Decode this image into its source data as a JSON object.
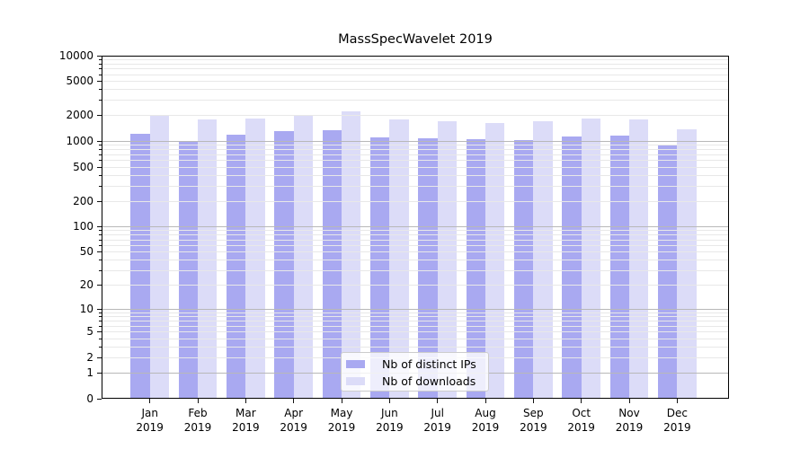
{
  "title": "MassSpecWavelet 2019",
  "legend": {
    "items": [
      {
        "label": "Nb of distinct IPs",
        "color": "#a9a9f1"
      },
      {
        "label": "Nb of downloads",
        "color": "#dcdcf8"
      }
    ]
  },
  "chart_data": {
    "type": "bar",
    "title": "MassSpecWavelet 2019",
    "categories": [
      "Jan 2019",
      "Feb 2019",
      "Mar 2019",
      "Apr 2019",
      "May 2019",
      "Jun 2019",
      "Jul 2019",
      "Aug 2019",
      "Sep 2019",
      "Oct 2019",
      "Nov 2019",
      "Dec 2019"
    ],
    "series": [
      {
        "name": "Nb of distinct IPs",
        "color": "#a9a9f1",
        "values": [
          1230,
          1000,
          1200,
          1310,
          1360,
          1110,
          1080,
          1050,
          1030,
          1140,
          1160,
          890
        ]
      },
      {
        "name": "Nb of downloads",
        "color": "#dcdcf8",
        "values": [
          2050,
          1800,
          1870,
          2020,
          2250,
          1790,
          1720,
          1650,
          1700,
          1850,
          1790,
          1370
        ]
      }
    ],
    "yscale": "log1p",
    "ylim": [
      0,
      10000
    ],
    "yticks": [
      0,
      1,
      2,
      5,
      10,
      20,
      50,
      100,
      200,
      500,
      1000,
      2000,
      5000,
      10000
    ],
    "grid": {
      "orientation": "horizontal",
      "major_color": "#b8b8b8",
      "minor_color": "#e8e8e8"
    },
    "legend_position": "inside lower-center",
    "frame_color": "#000000"
  }
}
